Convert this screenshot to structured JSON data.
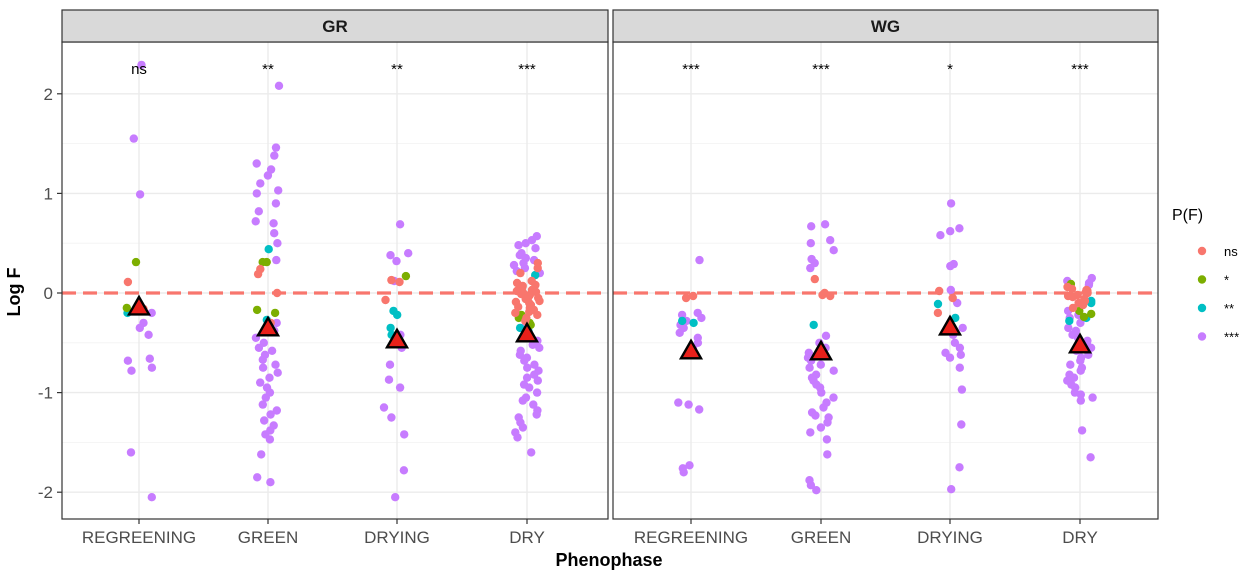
{
  "colors": {
    "ns": "#F8766D",
    "one_star": "#7CAE00",
    "two_star": "#00BFC4",
    "three_star": "#C77CFF",
    "reference_line": "#F8766D",
    "mean_marker_fill": "#E8201A",
    "strip_fill": "#D9D9D9",
    "panel_border": "#333333",
    "grid": "#EBEBEB"
  },
  "chart_data": {
    "type": "scatter",
    "xlabel": "Phenophase",
    "ylabel": "Log F",
    "categories": [
      "REGREENING",
      "GREEN",
      "DRYING",
      "DRY"
    ],
    "ylim": [
      -2.3,
      2.45
    ],
    "yticks": [
      -2,
      -1,
      0,
      1,
      2
    ],
    "ytick_labels": [
      "-2",
      "-1",
      "0",
      "1",
      "2"
    ],
    "reference_line_y": 0,
    "grid": true,
    "legend": {
      "title": "P(F)",
      "position": "right",
      "entries": [
        {
          "key": "ns",
          "label": "ns"
        },
        {
          "key": "*",
          "label": "*"
        },
        {
          "key": "**",
          "label": "**"
        },
        {
          "key": "***",
          "label": "***"
        }
      ]
    },
    "panels": [
      {
        "strip": "GR",
        "significance": [
          "ns",
          "**",
          "**",
          "***"
        ],
        "means": [
          -0.14,
          -0.35,
          -0.47,
          -0.41
        ],
        "points": {
          "REGREENING": {
            "ns": [
              0.11,
              -0.16
            ],
            "*": [
              0.31,
              -0.15
            ],
            "**": [
              -0.2
            ],
            "***": [
              2.29,
              1.55,
              0.99,
              -0.2,
              -0.3,
              -0.35,
              -0.42,
              -0.66,
              -0.68,
              -0.75,
              -0.78,
              -1.6,
              -2.05
            ]
          },
          "GREEN": {
            "ns": [
              0.24,
              0.19,
              0.0,
              -0.3
            ],
            "*": [
              0.31,
              0.31,
              -0.17,
              -0.2
            ],
            "**": [
              0.44,
              -0.27
            ],
            "***": [
              2.08,
              1.46,
              1.38,
              1.3,
              1.24,
              1.18,
              1.1,
              1.03,
              1.0,
              0.9,
              0.82,
              0.72,
              0.7,
              0.6,
              0.5,
              0.33,
              -0.3,
              -0.38,
              -0.45,
              -0.5,
              -0.55,
              -0.58,
              -0.62,
              -0.67,
              -0.72,
              -0.75,
              -0.8,
              -0.85,
              -0.9,
              -0.95,
              -1.0,
              -1.05,
              -1.12,
              -1.18,
              -1.22,
              -1.28,
              -1.33,
              -1.38,
              -1.42,
              -1.47,
              -1.62,
              -1.85,
              -1.9
            ]
          },
          "DRYING": {
            "ns": [
              0.13,
              0.11,
              -0.07
            ],
            "*": [
              0.17
            ],
            "**": [
              -0.18,
              -0.22,
              -0.35,
              -0.42
            ],
            "***": [
              0.69,
              0.4,
              0.38,
              0.32,
              0.12,
              -0.42,
              -0.55,
              -0.72,
              -0.87,
              -0.95,
              -1.15,
              -1.25,
              -1.42,
              -1.78,
              -2.05
            ]
          },
          "DRY": {
            "ns": [
              0.3,
              0.25,
              0.2,
              0.12,
              0.1,
              0.08,
              0.07,
              0.05,
              0.03,
              0.02,
              0.01,
              0.0,
              -0.01,
              -0.02,
              -0.03,
              -0.04,
              -0.05,
              -0.06,
              -0.08,
              -0.09,
              -0.1,
              -0.12,
              -0.14,
              -0.15,
              -0.17,
              -0.19,
              -0.2,
              -0.22,
              -0.25,
              -0.28
            ],
            "*": [
              -0.22,
              -0.25,
              -0.3,
              -0.32
            ],
            "**": [
              0.18,
              -0.35,
              -0.38
            ],
            "***": [
              0.57,
              0.53,
              0.5,
              0.48,
              0.45,
              0.4,
              0.38,
              0.35,
              0.33,
              0.3,
              0.28,
              0.25,
              0.22,
              0.2,
              -0.35,
              -0.4,
              -0.45,
              -0.48,
              -0.52,
              -0.55,
              -0.58,
              -0.62,
              -0.65,
              -0.68,
              -0.72,
              -0.75,
              -0.78,
              -0.82,
              -0.85,
              -0.88,
              -0.92,
              -0.95,
              -1.0,
              -1.05,
              -1.08,
              -1.12,
              -1.18,
              -1.22,
              -1.25,
              -1.3,
              -1.35,
              -1.4,
              -1.45,
              -1.6
            ]
          }
        }
      },
      {
        "strip": "WG",
        "significance": [
          "***",
          "***",
          "*",
          "***"
        ],
        "means": [
          -0.58,
          -0.59,
          -0.34,
          -0.52
        ],
        "points": {
          "REGREENING": {
            "ns": [
              -0.03,
              -0.05
            ],
            "*": [],
            "**": [
              -0.28,
              -0.3
            ],
            "***": [
              0.33,
              -0.2,
              -0.22,
              -0.25,
              -0.28,
              -0.32,
              -0.35,
              -0.4,
              -0.45,
              -0.5,
              -0.55,
              -1.1,
              -1.12,
              -1.17,
              -1.73,
              -1.76,
              -1.8
            ]
          },
          "GREEN": {
            "ns": [
              0.14,
              0.0,
              -0.02,
              -0.03
            ],
            "*": [],
            "**": [
              -0.32
            ],
            "***": [
              0.69,
              0.67,
              0.53,
              0.5,
              0.43,
              0.34,
              0.3,
              0.25,
              -0.43,
              -0.5,
              -0.55,
              -0.6,
              -0.62,
              -0.65,
              -0.68,
              -0.72,
              -0.75,
              -0.78,
              -0.82,
              -0.85,
              -0.88,
              -0.92,
              -0.95,
              -1.0,
              -1.05,
              -1.1,
              -1.15,
              -1.2,
              -1.23,
              -1.25,
              -1.3,
              -1.35,
              -1.4,
              -1.47,
              -1.62,
              -1.88,
              -1.93,
              -1.98
            ]
          },
          "DRYING": {
            "ns": [
              0.02,
              -0.05,
              -0.2
            ],
            "*": [],
            "**": [
              -0.11,
              -0.25
            ],
            "***": [
              0.9,
              0.65,
              0.62,
              0.58,
              0.29,
              0.27,
              0.03,
              -0.1,
              -0.35,
              -0.42,
              -0.5,
              -0.55,
              -0.6,
              -0.62,
              -0.65,
              -0.75,
              -0.97,
              -1.32,
              -1.75,
              -1.97
            ]
          },
          "DRY": {
            "ns": [
              0.06,
              0.04,
              0.03,
              0.02,
              0.01,
              0.0,
              -0.02,
              -0.03,
              -0.04,
              -0.06,
              -0.08,
              -0.1,
              -0.12,
              -0.15
            ],
            "*": [
              0.09,
              -0.18,
              -0.21,
              -0.24
            ],
            "**": [
              -0.08,
              -0.1,
              -0.12,
              -0.25,
              -0.28
            ],
            "***": [
              0.15,
              0.12,
              0.1,
              0.08,
              -0.18,
              -0.22,
              -0.25,
              -0.3,
              -0.35,
              -0.38,
              -0.42,
              -0.45,
              -0.48,
              -0.52,
              -0.55,
              -0.58,
              -0.62,
              -0.65,
              -0.68,
              -0.72,
              -0.75,
              -0.78,
              -0.82,
              -0.85,
              -0.88,
              -0.92,
              -0.95,
              -1.0,
              -1.02,
              -1.05,
              -1.08,
              -1.38,
              -1.65
            ]
          }
        }
      }
    ]
  }
}
